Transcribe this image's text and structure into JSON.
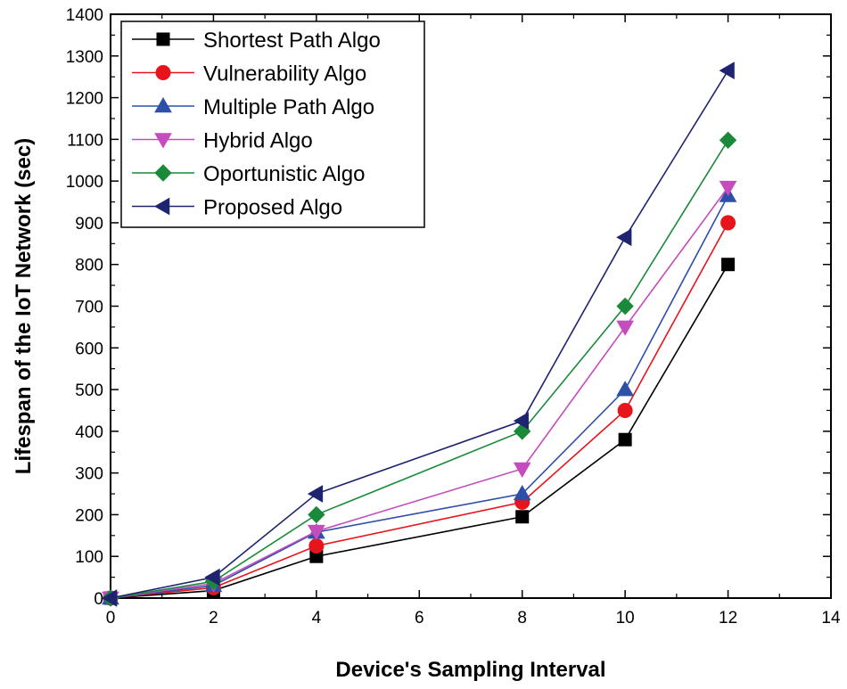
{
  "chart_data": {
    "type": "line",
    "title": "",
    "xlabel": "Device's Sampling Interval",
    "ylabel": "Lifespan of the IoT Network (sec)",
    "xlim": [
      0,
      14
    ],
    "ylim": [
      0,
      1400
    ],
    "x_ticks": [
      0,
      2,
      4,
      6,
      8,
      10,
      12,
      14
    ],
    "y_ticks": [
      0,
      100,
      200,
      300,
      400,
      500,
      600,
      700,
      800,
      900,
      1000,
      1100,
      1200,
      1300,
      1400
    ],
    "grid": false,
    "legend_position": "top-left",
    "series": [
      {
        "name": "Shortest Path Algo",
        "color": "#000000",
        "marker": "square",
        "x": [
          0,
          2,
          4,
          8,
          10,
          12
        ],
        "values": [
          0,
          18,
          100,
          195,
          380,
          800
        ]
      },
      {
        "name": "Vulnerability Algo",
        "color": "#e8141b",
        "marker": "circle",
        "x": [
          0,
          2,
          4,
          8,
          10,
          12
        ],
        "values": [
          0,
          25,
          125,
          230,
          450,
          900
        ]
      },
      {
        "name": "Multiple Path Algo",
        "color": "#2e4fa8",
        "marker": "triangle-up",
        "x": [
          0,
          2,
          4,
          8,
          10,
          12
        ],
        "values": [
          0,
          30,
          158,
          250,
          500,
          965
        ]
      },
      {
        "name": "Hybrid Algo",
        "color": "#c44cbf",
        "marker": "triangle-down",
        "x": [
          0,
          2,
          4,
          8,
          10,
          12
        ],
        "values": [
          0,
          35,
          160,
          310,
          650,
          985
        ]
      },
      {
        "name": "Oportunistic Algo",
        "color": "#1a8a3a",
        "marker": "diamond",
        "x": [
          0,
          2,
          4,
          8,
          10,
          12
        ],
        "values": [
          0,
          40,
          200,
          400,
          700,
          1098
        ]
      },
      {
        "name": "Proposed Algo",
        "color": "#1f2470",
        "marker": "triangle-left",
        "x": [
          0,
          2,
          4,
          8,
          10,
          12
        ],
        "values": [
          0,
          50,
          250,
          425,
          865,
          1265
        ]
      }
    ]
  }
}
